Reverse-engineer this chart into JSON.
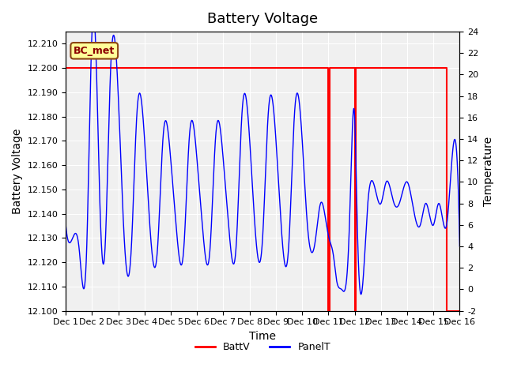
{
  "title": "Battery Voltage",
  "xlabel": "Time",
  "ylabel_left": "Battery Voltage",
  "ylabel_right": "Temperature",
  "ylim_left": [
    12.1,
    12.215
  ],
  "ylim_right": [
    -2,
    24
  ],
  "yticks_left": [
    12.1,
    12.11,
    12.12,
    12.13,
    12.14,
    12.15,
    12.16,
    12.17,
    12.18,
    12.19,
    12.2,
    12.21
  ],
  "yticks_right": [
    -2,
    0,
    2,
    4,
    6,
    8,
    10,
    12,
    14,
    16,
    18,
    20,
    22,
    24
  ],
  "xtick_labels": [
    "Dec 1",
    "Dec 2",
    "Dec 3",
    "Dec 4",
    "Dec 5",
    "Dec 6",
    "Dec 7",
    "Dec 8",
    "Dec 9",
    "Dec 10",
    "Dec 11",
    "Dec 12",
    "Dec 13",
    "Dec 14",
    "Dec 15",
    "Dec 16"
  ],
  "batt_v_level": 12.2,
  "batt_v_color": "#ff0000",
  "panel_t_color": "#0000ff",
  "background_color": "#e8e8e8",
  "plot_bg_color": "#f0f0f0",
  "bc_met_label": "BC_met",
  "bc_met_box_color": "#ffff99",
  "bc_met_border_color": "#8B4513",
  "bc_met_text_color": "#8B0000",
  "legend_batt_label": "BattV",
  "legend_panel_label": "PanelT",
  "title_fontsize": 13,
  "axis_label_fontsize": 10,
  "tick_fontsize": 8
}
